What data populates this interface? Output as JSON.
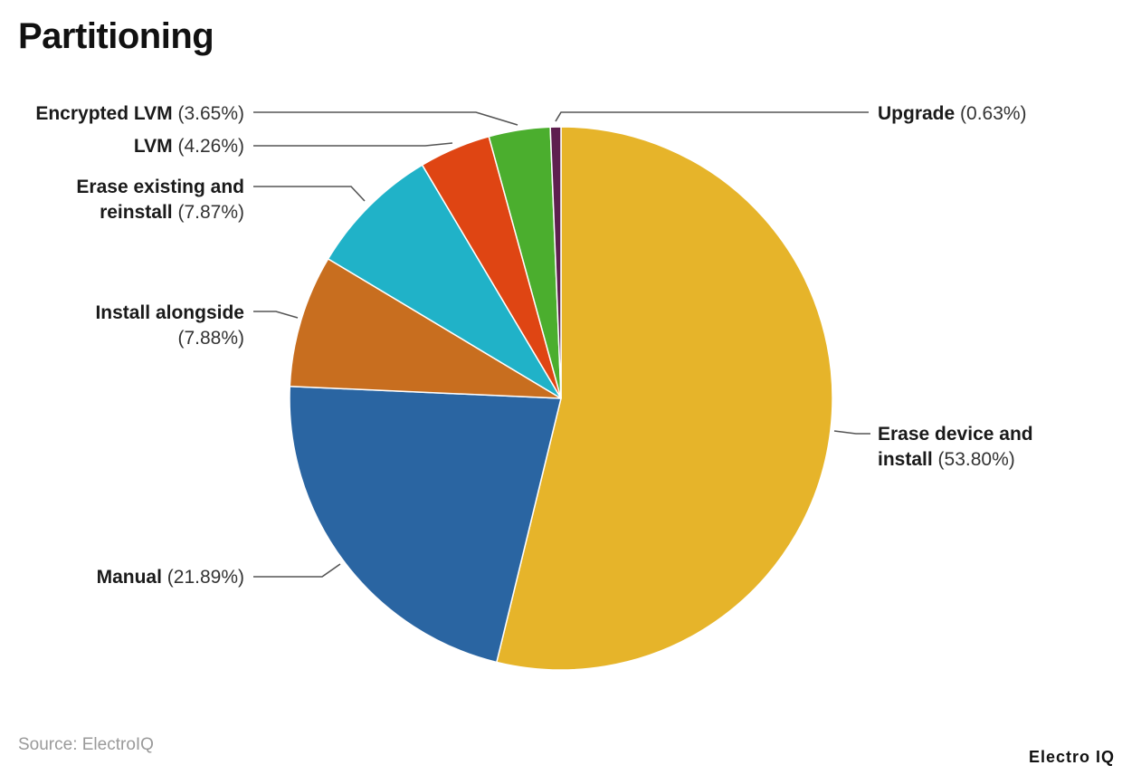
{
  "title": "Partitioning",
  "source": "Source: ElectroIQ",
  "brand": "Electro IQ",
  "chart_data": {
    "type": "pie",
    "title": "Partitioning",
    "start_angle_deg": 0,
    "direction": "clockwise",
    "slices": [
      {
        "label": "Erase device and install",
        "value": 53.8,
        "display": "(53.80%)",
        "color": "#E6B42A"
      },
      {
        "label": "Manual",
        "value": 21.89,
        "display": "(21.89%)",
        "color": "#2A65A2"
      },
      {
        "label": "Install alongside",
        "value": 7.88,
        "display": "(7.88%)",
        "color": "#C86E1F"
      },
      {
        "label": "Erase existing and reinstall",
        "value": 7.87,
        "display": "(7.87%)",
        "color": "#20B2C8"
      },
      {
        "label": "LVM",
        "value": 4.26,
        "display": "(4.26%)",
        "color": "#DF4513"
      },
      {
        "label": "Encrypted LVM",
        "value": 3.65,
        "display": "(3.65%)",
        "color": "#4BAE2E"
      },
      {
        "label": "Upgrade",
        "value": 0.63,
        "display": "(0.63%)",
        "color": "#5E1F4F"
      }
    ]
  }
}
